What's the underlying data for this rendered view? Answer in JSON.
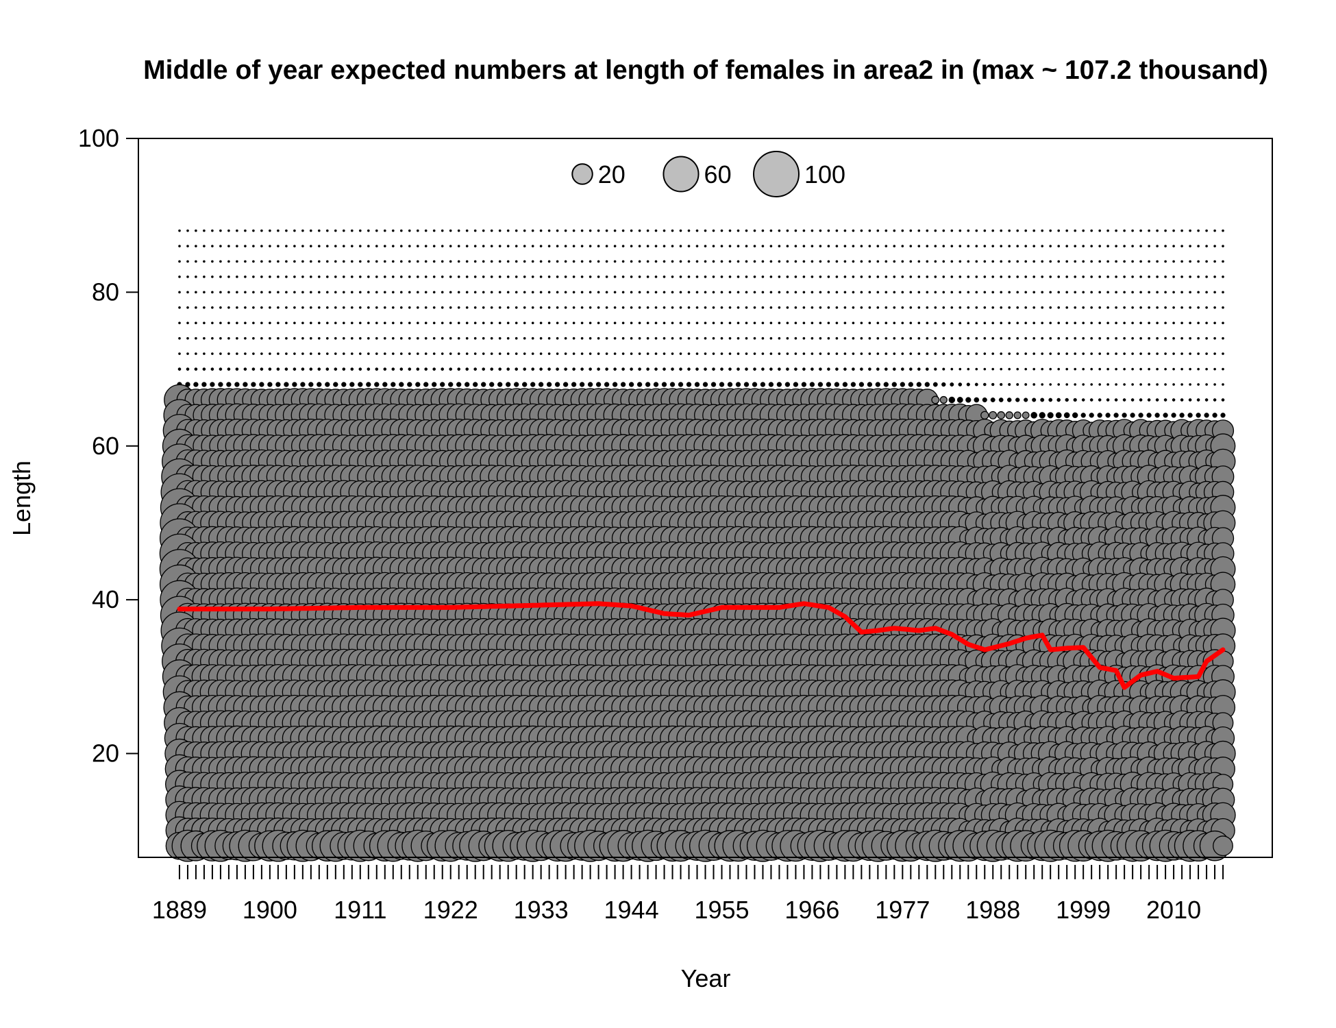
{
  "chart_data": {
    "type": "scatter",
    "subtype": "bubble",
    "title": "Middle of year expected numbers at length of females in area2 in (max ~ 107.2 thousand)",
    "xlabel": "Year",
    "ylabel": "Length",
    "xlim": [
      1884,
      2022
    ],
    "ylim": [
      6.5,
      100
    ],
    "x_tick_labels": [
      "1889",
      "1900",
      "1911",
      "1922",
      "1933",
      "1944",
      "1955",
      "1966",
      "1977",
      "1988",
      "1999",
      "2010"
    ],
    "x_tick_values": [
      1889,
      1900,
      1911,
      1922,
      1933,
      1944,
      1955,
      1966,
      1977,
      1988,
      1999,
      2010
    ],
    "x_minor_ticks": {
      "from": 1889,
      "to": 2016,
      "step": 1
    },
    "y_tick_labels": [
      "20",
      "40",
      "60",
      "80",
      "100"
    ],
    "y_tick_values": [
      20,
      40,
      60,
      80,
      100
    ],
    "legend": {
      "placement": "top-center",
      "entries": [
        {
          "label": "20",
          "value": 20
        },
        {
          "label": "60",
          "value": 60
        },
        {
          "label": "100",
          "value": 100
        }
      ]
    },
    "max_value_thousand": 107.2,
    "bubble_fill": "#7f7f7f",
    "legend_fill": "#bebebe",
    "bubble_stroke": "#000000",
    "mean_line_color": "#ff0000",
    "years": {
      "from": 1889,
      "to": 2016,
      "step": 1
    },
    "length_bins": {
      "from": 8,
      "to": 88,
      "step": 2
    },
    "mean_length_series": {
      "name": "",
      "points": [
        [
          1889,
          38.8
        ],
        [
          1900,
          38.8
        ],
        [
          1911,
          39.0
        ],
        [
          1922,
          39.0
        ],
        [
          1933,
          39.3
        ],
        [
          1940,
          39.5
        ],
        [
          1944,
          39.2
        ],
        [
          1948,
          38.2
        ],
        [
          1951,
          38.0
        ],
        [
          1955,
          39.0
        ],
        [
          1958,
          39.0
        ],
        [
          1962,
          39.0
        ],
        [
          1965,
          39.5
        ],
        [
          1968,
          39.0
        ],
        [
          1970,
          37.8
        ],
        [
          1972,
          35.8
        ],
        [
          1974,
          36.0
        ],
        [
          1976,
          36.3
        ],
        [
          1979,
          36.0
        ],
        [
          1981,
          36.3
        ],
        [
          1983,
          35.5
        ],
        [
          1985,
          34.2
        ],
        [
          1987,
          33.5
        ],
        [
          1990,
          34.3
        ],
        [
          1992,
          35.0
        ],
        [
          1994,
          35.4
        ],
        [
          1995,
          33.5
        ],
        [
          1997,
          33.7
        ],
        [
          1999,
          33.8
        ],
        [
          2001,
          31.2
        ],
        [
          2003,
          30.8
        ],
        [
          2004,
          28.6
        ],
        [
          2006,
          30.2
        ],
        [
          2008,
          30.7
        ],
        [
          2010,
          29.8
        ],
        [
          2013,
          30.0
        ],
        [
          2014,
          32.0
        ],
        [
          2016,
          33.5
        ]
      ]
    }
  }
}
